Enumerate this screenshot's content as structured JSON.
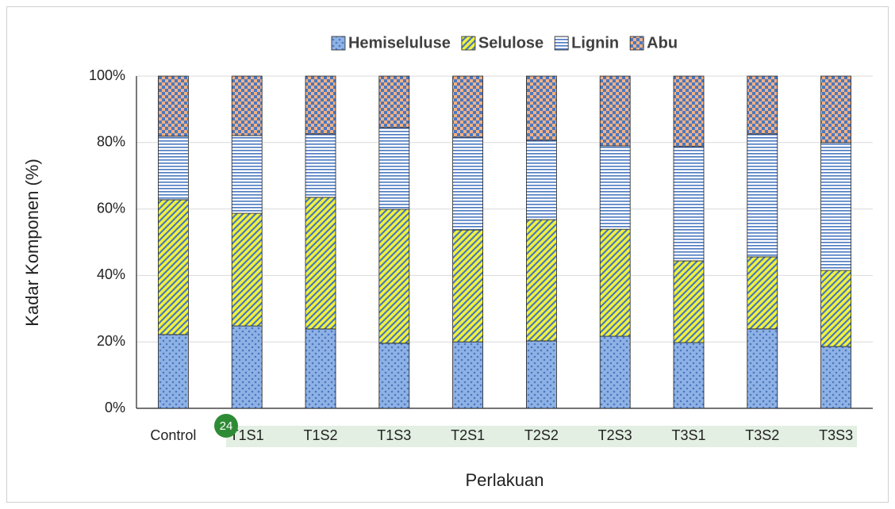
{
  "chart_data": {
    "type": "stacked_bar",
    "y_label": "Kadar Komponen (%)",
    "x_label": "Perlakuan",
    "categories": [
      "Control",
      "T1S1",
      "T1S2",
      "T1S3",
      "T2S1",
      "T2S2",
      "T2S3",
      "T3S1",
      "T3S2",
      "T3S3"
    ],
    "series": [
      {
        "name": "Hemiseluluse",
        "color": "#4a78c0",
        "color2": "#8fb2e6",
        "values": [
          22.2,
          24.8,
          23.9,
          19.6,
          20.0,
          20.3,
          21.7,
          19.8,
          23.9,
          18.6
        ]
      },
      {
        "name": "Selulose",
        "color": "#4a78c0",
        "color2": "#f2f23a",
        "values": [
          40.6,
          33.9,
          39.6,
          40.3,
          33.7,
          36.5,
          32.2,
          24.6,
          21.7,
          22.9
        ]
      },
      {
        "name": "Lignin",
        "color": "#4a78c0",
        "color2": "#ffffff",
        "values": [
          19.1,
          23.4,
          19.1,
          24.6,
          27.9,
          23.9,
          25.1,
          34.4,
          37.0,
          38.5
        ]
      },
      {
        "name": "Abu",
        "color": "#4a78c0",
        "color2": "#f4b183",
        "values": [
          18.1,
          17.9,
          17.4,
          15.5,
          18.4,
          19.3,
          21.0,
          21.2,
          17.4,
          20.0
        ]
      }
    ],
    "ylim": [
      0,
      100
    ],
    "yticks": [
      {
        "value": 0,
        "label": "0%"
      },
      {
        "value": 20,
        "label": "20%"
      },
      {
        "value": 40,
        "label": "40%"
      },
      {
        "value": 60,
        "label": "60%"
      },
      {
        "value": 80,
        "label": "80%"
      },
      {
        "value": 100,
        "label": "100%"
      }
    ],
    "grid": true,
    "legend": "top"
  },
  "badge": "24"
}
